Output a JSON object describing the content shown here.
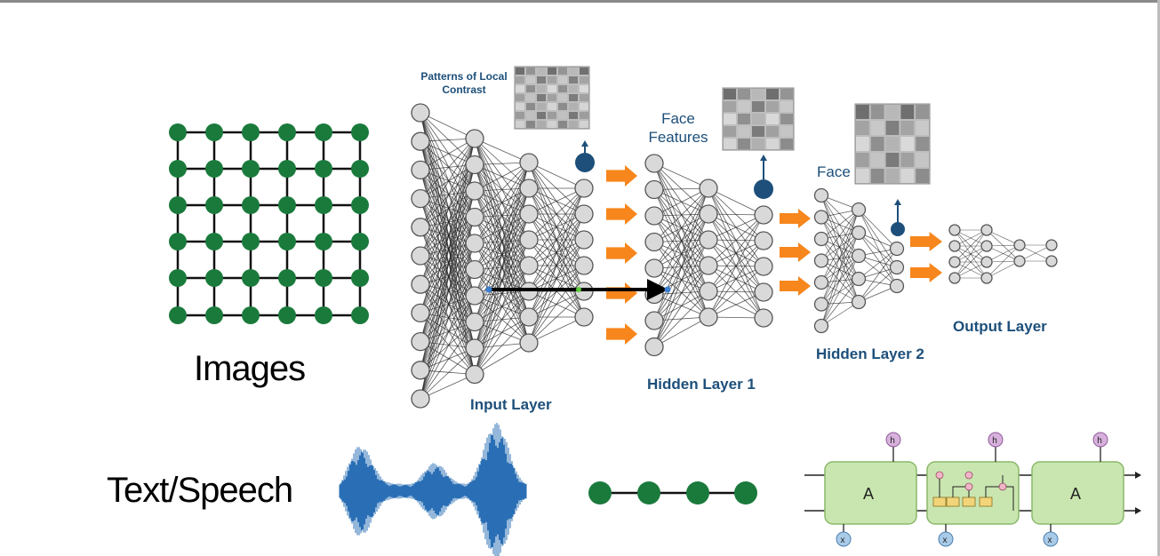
{
  "labels": {
    "images": "Images",
    "text_speech": "Text/Speech",
    "patterns": "Patterns of Local Contrast",
    "input_layer": "Input Layer",
    "face_features": "Face Features",
    "hidden_layer_1": "Hidden Layer 1",
    "face": "Face",
    "hidden_layer_2": "Hidden Layer 2",
    "output_layer": "Output Layer"
  },
  "lstm": {
    "cell_label": "A",
    "h_prev": "h",
    "h_curr": "h",
    "h_next": "h",
    "x_prev": "x",
    "x_curr": "x",
    "x_next": "x"
  },
  "colors": {
    "green_node": "#1a7a3c",
    "nn_blue": "#1d4f7a",
    "arrow_orange": "#f7861c",
    "wave_blue": "#2a6fb5",
    "lstm_fill": "#c9e6b0"
  }
}
